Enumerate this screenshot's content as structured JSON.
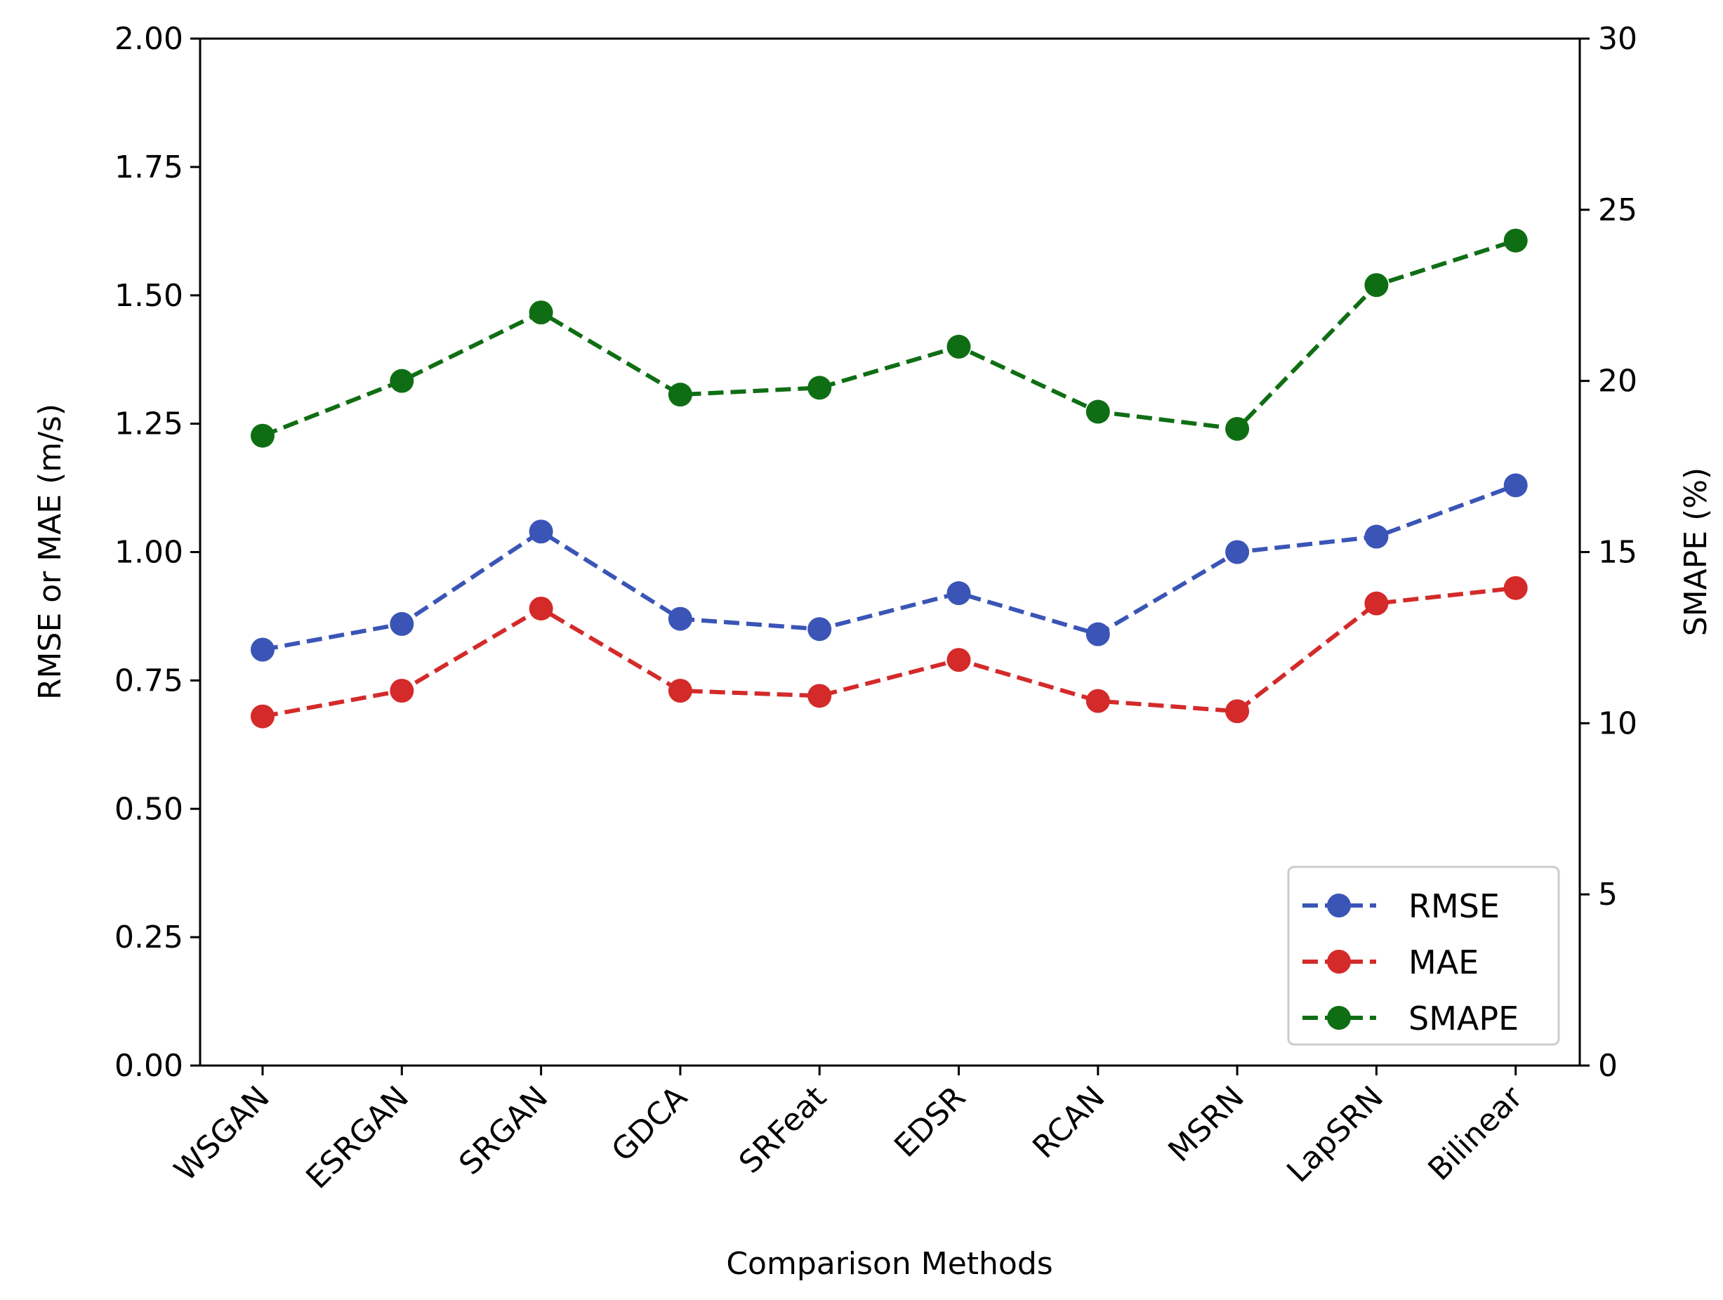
{
  "chart_data": {
    "type": "line",
    "title": "",
    "xlabel": "Comparison Methods",
    "ylabel": "RMSE or MAE (m/s)",
    "ylabel_right": "SMAPE (%)",
    "categories": [
      "WSGAN",
      "ESRGAN",
      "SRGAN",
      "GDCA",
      "SRFeat",
      "EDSR",
      "RCAN",
      "MSRN",
      "LapSRN",
      "Bilinear"
    ],
    "ylim": [
      0,
      2
    ],
    "ylim_right": [
      0,
      30
    ],
    "yticks": [
      "0.00",
      "0.25",
      "0.50",
      "0.75",
      "1.00",
      "1.25",
      "1.50",
      "1.75",
      "2.00"
    ],
    "yticks_right": [
      "0",
      "5",
      "10",
      "15",
      "20",
      "25",
      "30"
    ],
    "grid": false,
    "legend_position": "bottom-right",
    "series": [
      {
        "name": "RMSE",
        "axis": "left",
        "color": "#3a55b6",
        "linestyle": "dashed",
        "marker": "circle",
        "values": [
          0.81,
          0.86,
          1.04,
          0.87,
          0.85,
          0.92,
          0.84,
          1.0,
          1.03,
          1.13
        ]
      },
      {
        "name": "MAE",
        "axis": "left",
        "color": "#d42a2a",
        "linestyle": "dashed",
        "marker": "circle",
        "values": [
          0.68,
          0.73,
          0.89,
          0.73,
          0.72,
          0.79,
          0.71,
          0.69,
          0.9,
          0.93
        ]
      },
      {
        "name": "SMAPE",
        "axis": "right",
        "color": "#0f6e14",
        "linestyle": "dashed",
        "marker": "circle",
        "values": [
          18.4,
          20.0,
          22.0,
          19.6,
          19.8,
          21.0,
          19.1,
          18.6,
          22.8,
          24.1
        ]
      }
    ]
  }
}
